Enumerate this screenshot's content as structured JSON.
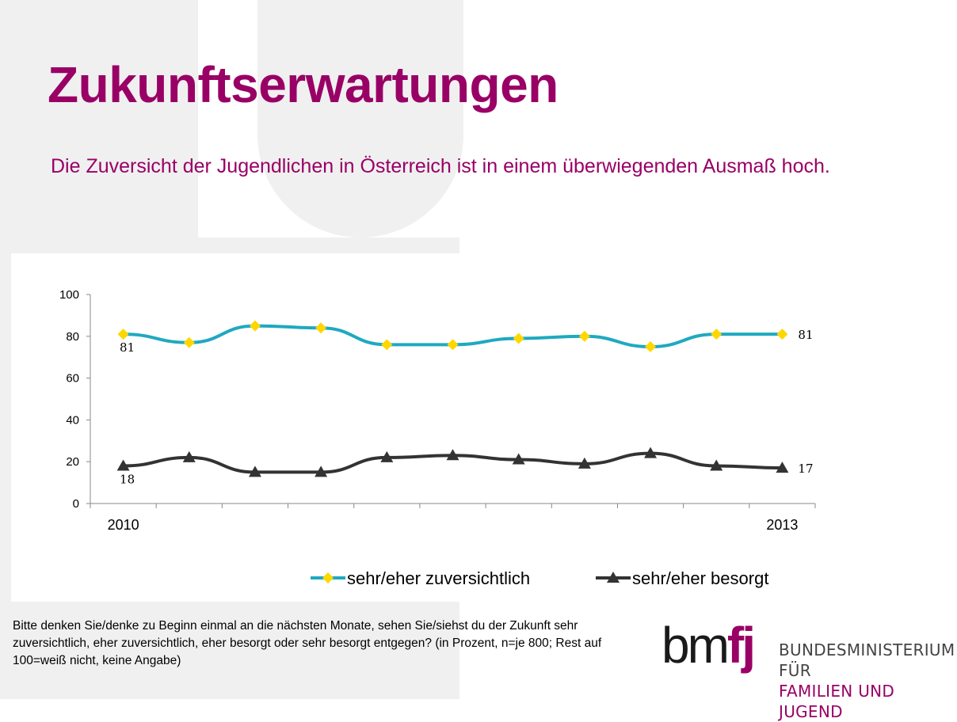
{
  "slide": {
    "title": "Zukunftserwartungen",
    "subtitle": "Die Zuversicht der Jugendlichen in Österreich ist in einem überwiegenden Ausmaß hoch.",
    "footnote": "Bitte denken Sie/denke zu Beginn einmal an die nächsten Monate, sehen Sie/siehst du der Zukunft sehr zuversichtlich, eher zuversichtlich, eher besorgt oder sehr besorgt entgegen? (in Prozent, n=je 800; Rest auf 100=weiß nicht, keine Angabe)"
  },
  "logo": {
    "mark_left": "bm",
    "mark_right": "fj",
    "line1": "BUNDESMINISTERIUM FÜR",
    "line2": "FAMILIEN UND JUGEND"
  },
  "colors": {
    "brand": "#990066",
    "series_confident": "#1fa9c0",
    "marker_confident": "#ffd700",
    "series_worried": "#333333",
    "background_shape": "#f0f0f0"
  },
  "chart_data": {
    "type": "line",
    "title": "",
    "xlabel": "",
    "ylabel": "",
    "ylim": [
      0,
      100
    ],
    "yticks": [
      "0",
      "20",
      "40",
      "60",
      "80",
      "100"
    ],
    "x_labels": {
      "first": "2010",
      "last": "2013"
    },
    "categories_count": 11,
    "grid": false,
    "legend_position": "bottom",
    "series": [
      {
        "name": "sehr/eher zuversichtlich",
        "values": [
          81,
          77,
          85,
          84,
          76,
          76,
          79,
          80,
          75,
          81,
          81
        ],
        "marker": "diamond",
        "labels": {
          "first": "81",
          "last": "81"
        }
      },
      {
        "name": "sehr/eher besorgt",
        "values": [
          18,
          22,
          15,
          15,
          22,
          23,
          21,
          19,
          24,
          18,
          17
        ],
        "marker": "triangle",
        "labels": {
          "first": "18",
          "last": "17"
        }
      }
    ]
  }
}
